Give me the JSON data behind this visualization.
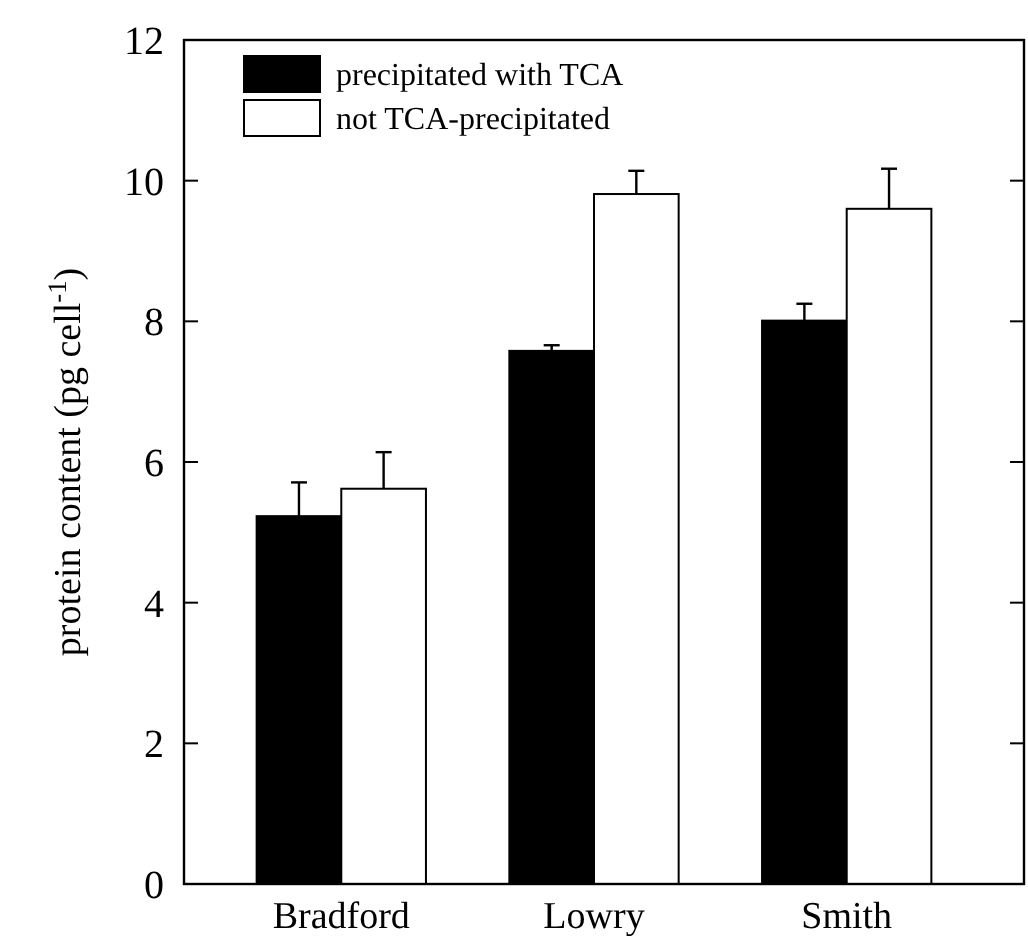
{
  "chart_data": {
    "type": "bar",
    "ylabel": "protein content (pg  cell$^{-1}$)",
    "categories": [
      "Bradford",
      "Lowry",
      "Smith"
    ],
    "series": [
      {
        "name": "precipitated with TCA",
        "color": "#000000",
        "values": [
          5.23,
          7.58,
          8.01
        ],
        "errors": [
          [
            5.23,
            5.71
          ],
          [
            7.58,
            7.66
          ],
          [
            8.01,
            8.25
          ]
        ]
      },
      {
        "name": "not TCA-precipitated",
        "color": "#ffffff",
        "values": [
          5.62,
          9.81,
          9.6
        ],
        "errors": [
          [
            5.62,
            6.14
          ],
          [
            9.81,
            10.14
          ],
          [
            9.6,
            10.17
          ]
        ]
      }
    ],
    "ylim": [
      0,
      12
    ],
    "yticks": [
      0,
      2,
      4,
      6,
      8,
      10,
      12
    ],
    "legend": "top left"
  }
}
